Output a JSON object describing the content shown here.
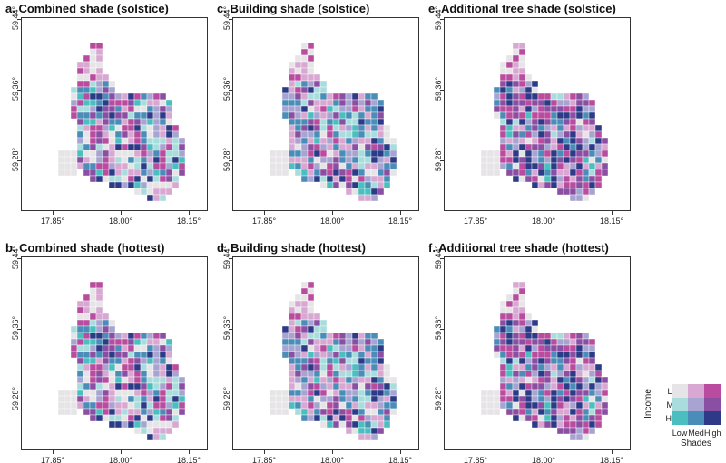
{
  "panels": [
    {
      "title": "a.  Combined shade (solstice)",
      "bias": [
        0.3,
        0.35,
        0.35
      ]
    },
    {
      "title": "c.  Building shade (solstice)",
      "bias": [
        0.25,
        0.45,
        0.3
      ]
    },
    {
      "title": "e.  Additional tree shade (solstice)",
      "bias": [
        0.1,
        0.35,
        0.55
      ]
    },
    {
      "title": "b.  Combined shade (hottest)",
      "bias": [
        0.3,
        0.35,
        0.35
      ]
    },
    {
      "title": "d.  Building shade (hottest)",
      "bias": [
        0.25,
        0.45,
        0.3
      ]
    },
    {
      "title": "f.  Additional tree shade (hottest)",
      "bias": [
        0.1,
        0.35,
        0.55
      ]
    }
  ],
  "axes": {
    "x_ticks": [
      "17.85°",
      "18.00°",
      "18.15°"
    ],
    "y_ticks": [
      "59.44°",
      "59.36°",
      "59.28°"
    ]
  },
  "legend": {
    "y_title": "Income",
    "x_title": "Shades",
    "rows": [
      "Low",
      "Med",
      "High"
    ],
    "cols": [
      "Low",
      "Med",
      "High"
    ],
    "colors": [
      [
        "#e6e4e6",
        "#d8a8d2",
        "#b94c9f"
      ],
      [
        "#a9dcdc",
        "#a7a4d2",
        "#8a4fa2"
      ],
      [
        "#4bbfbf",
        "#4a8db8",
        "#2c3a88"
      ]
    ]
  }
}
